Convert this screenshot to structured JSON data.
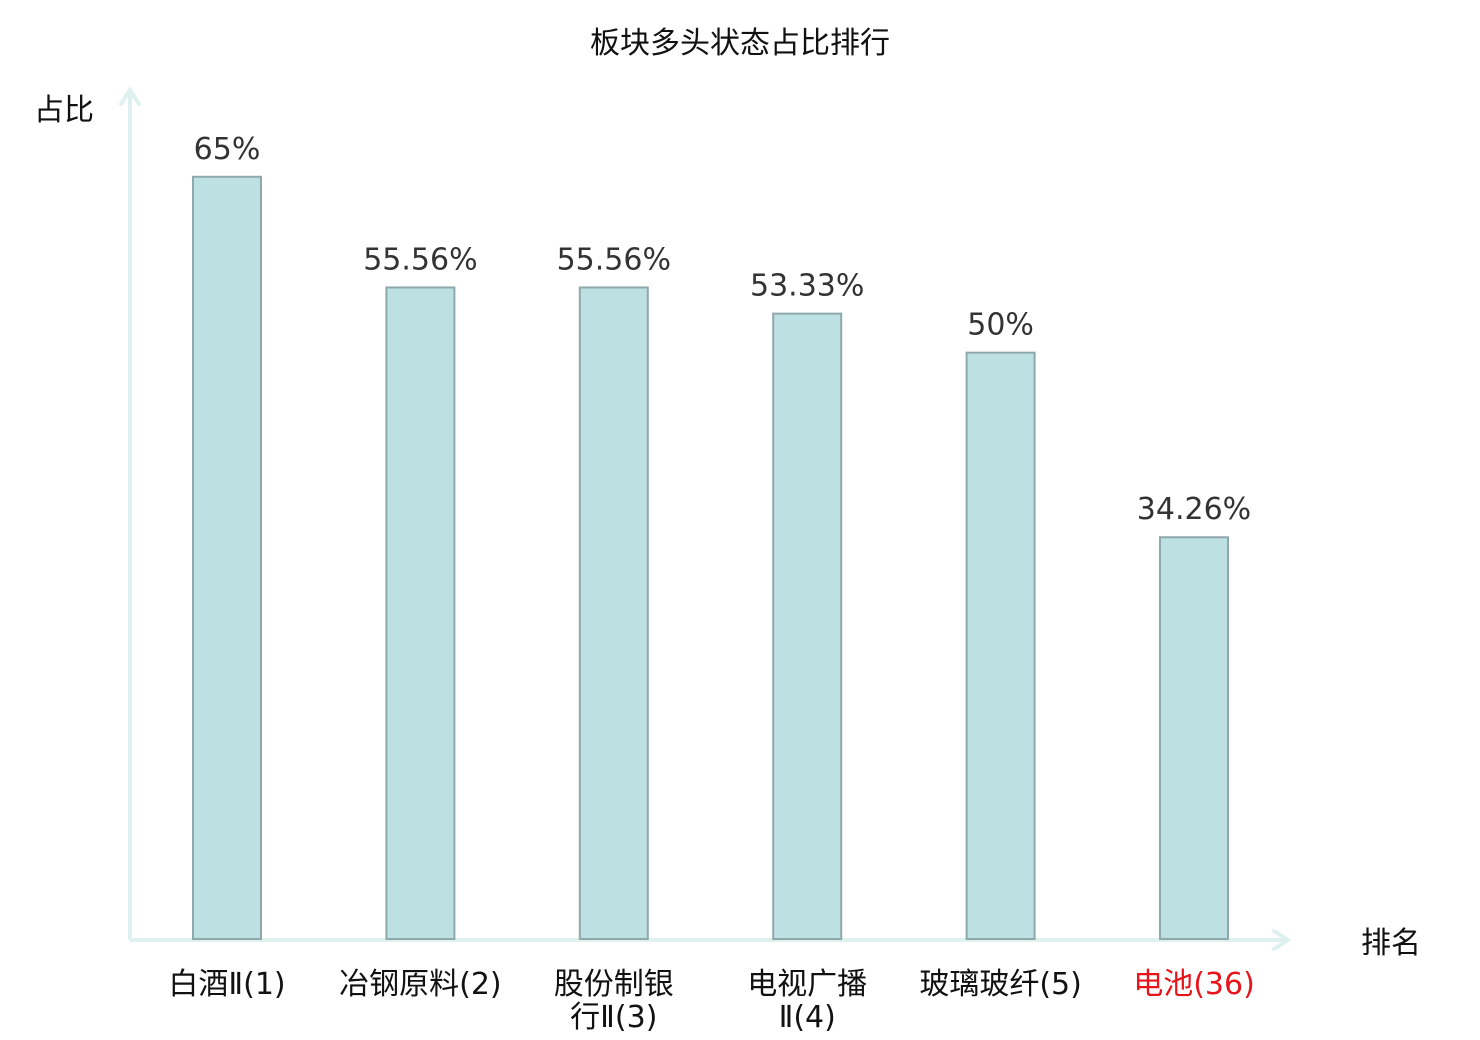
{
  "chart_data": {
    "type": "bar",
    "title": "板块多头状态占比排行",
    "xlabel": "排名",
    "ylabel": "占比",
    "categories": [
      {
        "lines": [
          "白酒Ⅱ(1)"
        ],
        "highlight": false
      },
      {
        "lines": [
          "冶钢原料(2)"
        ],
        "highlight": false
      },
      {
        "lines": [
          "股份制银",
          "行Ⅱ(3)"
        ],
        "highlight": false
      },
      {
        "lines": [
          "电视广播",
          "Ⅱ(4)"
        ],
        "highlight": false
      },
      {
        "lines": [
          "玻璃玻纤(5)"
        ],
        "highlight": false
      },
      {
        "lines": [
          "电池(36)"
        ],
        "highlight": true
      }
    ],
    "values": [
      65,
      55.56,
      55.56,
      53.33,
      50,
      34.26
    ],
    "value_labels": [
      "65%",
      "55.56%",
      "55.56%",
      "53.33%",
      "50%",
      "34.26%"
    ],
    "ylim": [
      0,
      72.4
    ],
    "grid": false,
    "colors": {
      "bar_fill": "#bde0e3",
      "bar_stroke": "#8fa9ab",
      "axis": "#dff1ee",
      "text": "#111111",
      "value_text": "#333333",
      "highlight_text": "#e8141b"
    }
  }
}
